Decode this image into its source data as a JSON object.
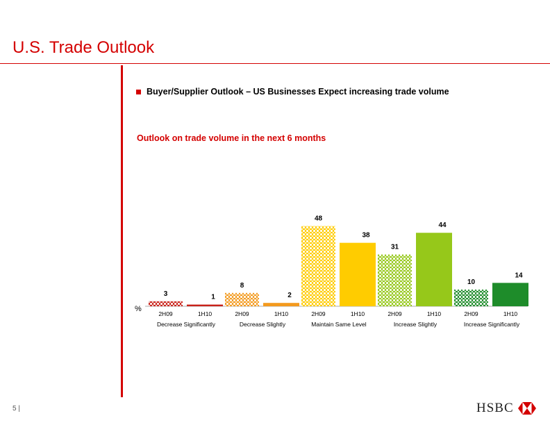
{
  "page": {
    "title": "U.S. Trade Outlook",
    "bullet": "Buyer/Supplier Outlook – US Businesses Expect increasing trade volume",
    "subtitle": "Outlook on trade volume in the next 6 months",
    "page_number": "5 |",
    "logo_text": "HSBC",
    "colors": {
      "brand": "#d40000",
      "decrease_significantly": "#c8221a",
      "decrease_slightly": "#f39a1e",
      "maintain_same_level": "#ffcc00",
      "increase_slightly": "#96c81a",
      "increase_significantly": "#1e8c2a"
    }
  },
  "chart_data": {
    "type": "bar",
    "ylabel": "%",
    "ylim": [
      0,
      52
    ],
    "periods": [
      "2H09",
      "1H10"
    ],
    "categories": [
      "Decrease Significantly",
      "Decrease Slightly",
      "Maintain Same Level",
      "Increase Slightly",
      "Increase Significantly"
    ],
    "series": [
      {
        "name": "2H09",
        "values": [
          3,
          8,
          48,
          31,
          10
        ],
        "pattern": "hatched"
      },
      {
        "name": "1H10",
        "values": [
          1,
          2,
          38,
          44,
          14
        ],
        "pattern": "solid"
      }
    ],
    "bar_colors": [
      "#c8221a",
      "#f39a1e",
      "#ffcc00",
      "#96c81a",
      "#1e8c2a"
    ],
    "grid": false,
    "legend": "none"
  }
}
